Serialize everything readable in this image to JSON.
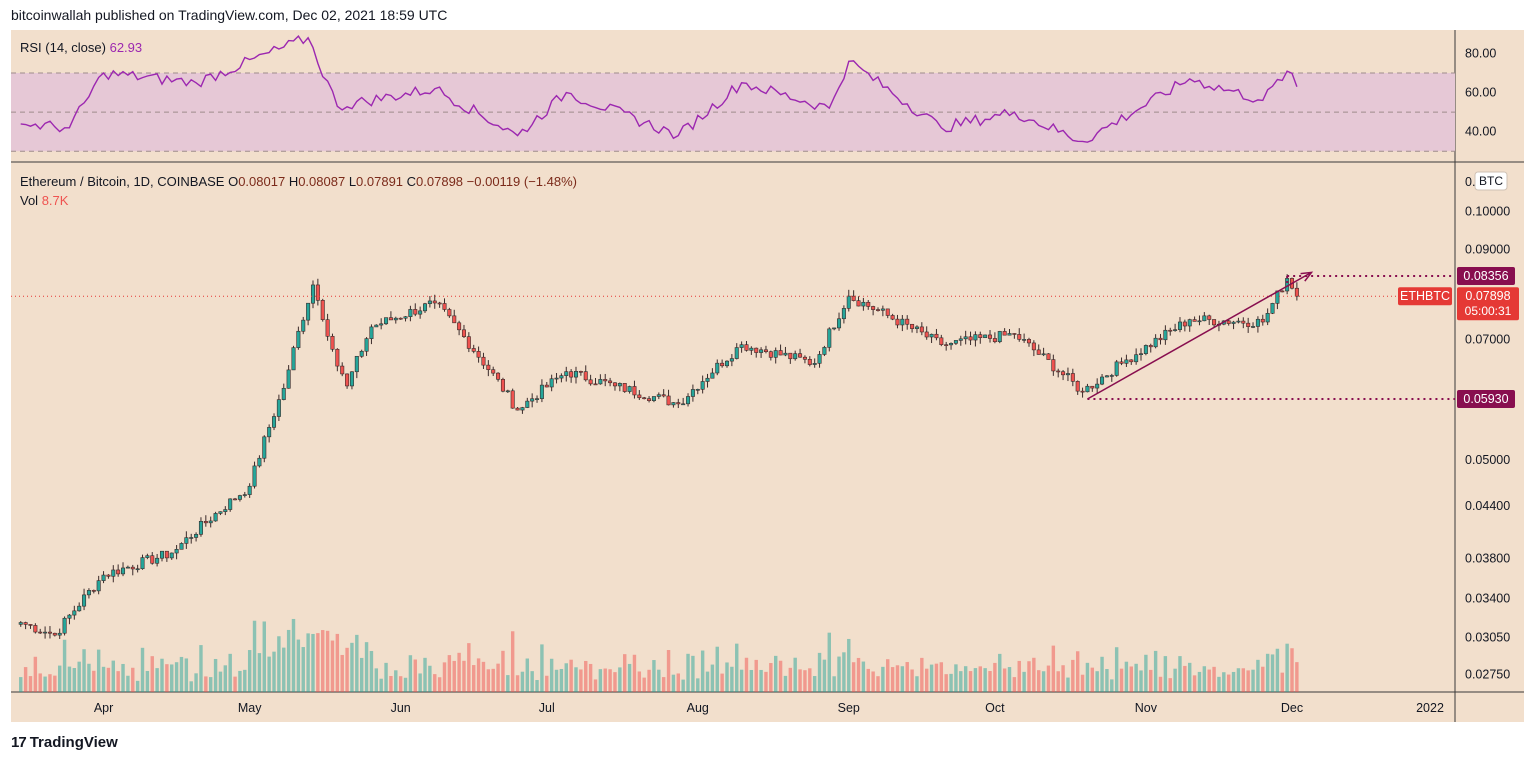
{
  "header": {
    "publisher": "bitcoinwallah published on TradingView.com, Dec 02, 2021 18:59 UTC"
  },
  "footer": {
    "brand": "TradingView",
    "logo_icon": "tradingview-logo-icon"
  },
  "colors": {
    "background": "#f2dfcc",
    "up": "#26a69a",
    "down": "#ef5350",
    "rsi_line": "#9c27b0",
    "rsi_band": "#e6c8d6",
    "annotation": "#880e4f",
    "price_line": "#e53935"
  },
  "rsi_panel": {
    "label": "RSI (14, close)",
    "value": "62.93",
    "axis_ticks": [
      "80.00",
      "60.00",
      "40.00"
    ]
  },
  "price_panel": {
    "symbol": "Ethereum / Bitcoin, 1D, COINBASE",
    "ohlc": {
      "o_label": "O",
      "o": "0.08017",
      "h_label": "H",
      "h": "0.08087",
      "l_label": "L",
      "l": "0.07891",
      "c_label": "C",
      "c": "0.07898",
      "change": "−0.00119 (−1.48%)"
    },
    "vol_label": "Vol",
    "vol_value": "8.7K",
    "currency_badge": "BTC",
    "axis_partial": "0.",
    "axis_ticks": [
      "0.10000",
      "0.09000",
      "0.07000",
      "0.05000",
      "0.04400",
      "0.03800",
      "0.03400",
      "0.03050",
      "0.02750"
    ],
    "price_tags": {
      "top": "0.08356",
      "current": "0.07898",
      "countdown": "05:00:31",
      "low": "0.05930",
      "symbol_tag": "ETHBTC"
    }
  },
  "time_axis": [
    "Apr",
    "May",
    "Jun",
    "Jul",
    "Aug",
    "Sep",
    "Oct",
    "Nov",
    "Dec",
    "2022"
  ],
  "chart_data": {
    "type": "candlestick",
    "title": "Ethereum / Bitcoin, 1D, COINBASE",
    "scale": "log",
    "ylim": [
      0.0262,
      0.1145
    ],
    "rsi_ylim": [
      25,
      92
    ],
    "rsi_levels": [
      70,
      50,
      30
    ],
    "levels": {
      "resistance": 0.08356,
      "support": 0.0593,
      "last": 0.07898
    },
    "trendline": {
      "from": [
        "Oct 20",
        0.0593
      ],
      "to": [
        "Dec 05",
        0.0844
      ]
    },
    "key_points": [
      {
        "date": "Mar 15",
        "close": 0.0318
      },
      {
        "date": "Mar 22",
        "close": 0.0307
      },
      {
        "date": "Apr 01",
        "close": 0.0363
      },
      {
        "date": "Apr 15",
        "close": 0.0386
      },
      {
        "date": "May 01",
        "close": 0.0465
      },
      {
        "date": "May 08",
        "close": 0.0611
      },
      {
        "date": "May 14",
        "close": 0.0815
      },
      {
        "date": "May 19",
        "close": 0.065
      },
      {
        "date": "May 21",
        "close": 0.0615
      },
      {
        "date": "May 26",
        "close": 0.0725
      },
      {
        "date": "Jun 08",
        "close": 0.0775
      },
      {
        "date": "Jun 25",
        "close": 0.0575
      },
      {
        "date": "Jul 05",
        "close": 0.064
      },
      {
        "date": "Jul 15",
        "close": 0.0615
      },
      {
        "date": "Jul 28",
        "close": 0.0585
      },
      {
        "date": "Aug 10",
        "close": 0.069
      },
      {
        "date": "Aug 25",
        "close": 0.0655
      },
      {
        "date": "Sep 01",
        "close": 0.079
      },
      {
        "date": "Sep 20",
        "close": 0.069
      },
      {
        "date": "Oct 05",
        "close": 0.071
      },
      {
        "date": "Oct 19",
        "close": 0.0605
      },
      {
        "date": "Oct 27",
        "close": 0.0655
      },
      {
        "date": "Nov 10",
        "close": 0.074
      },
      {
        "date": "Nov 25",
        "close": 0.0735
      },
      {
        "date": "Nov 30",
        "close": 0.083
      },
      {
        "date": "Dec 02",
        "close": 0.07898
      }
    ],
    "rsi_key_points": [
      {
        "date": "Mar 15",
        "value": 44
      },
      {
        "date": "Mar 25",
        "value": 42
      },
      {
        "date": "Apr 01",
        "value": 70
      },
      {
        "date": "Apr 20",
        "value": 65
      },
      {
        "date": "May 13",
        "value": 88
      },
      {
        "date": "May 19",
        "value": 53
      },
      {
        "date": "Jun 08",
        "value": 62
      },
      {
        "date": "Jun 25",
        "value": 38
      },
      {
        "date": "Jul 05",
        "value": 60
      },
      {
        "date": "Jul 28",
        "value": 38
      },
      {
        "date": "Aug 10",
        "value": 65
      },
      {
        "date": "Aug 28",
        "value": 52
      },
      {
        "date": "Sep 01",
        "value": 76
      },
      {
        "date": "Sep 20",
        "value": 42
      },
      {
        "date": "Oct 05",
        "value": 50
      },
      {
        "date": "Oct 19",
        "value": 35
      },
      {
        "date": "Nov 10",
        "value": 67
      },
      {
        "date": "Nov 25",
        "value": 56
      },
      {
        "date": "Nov 30",
        "value": 71
      },
      {
        "date": "Dec 02",
        "value": 62.93
      }
    ]
  }
}
